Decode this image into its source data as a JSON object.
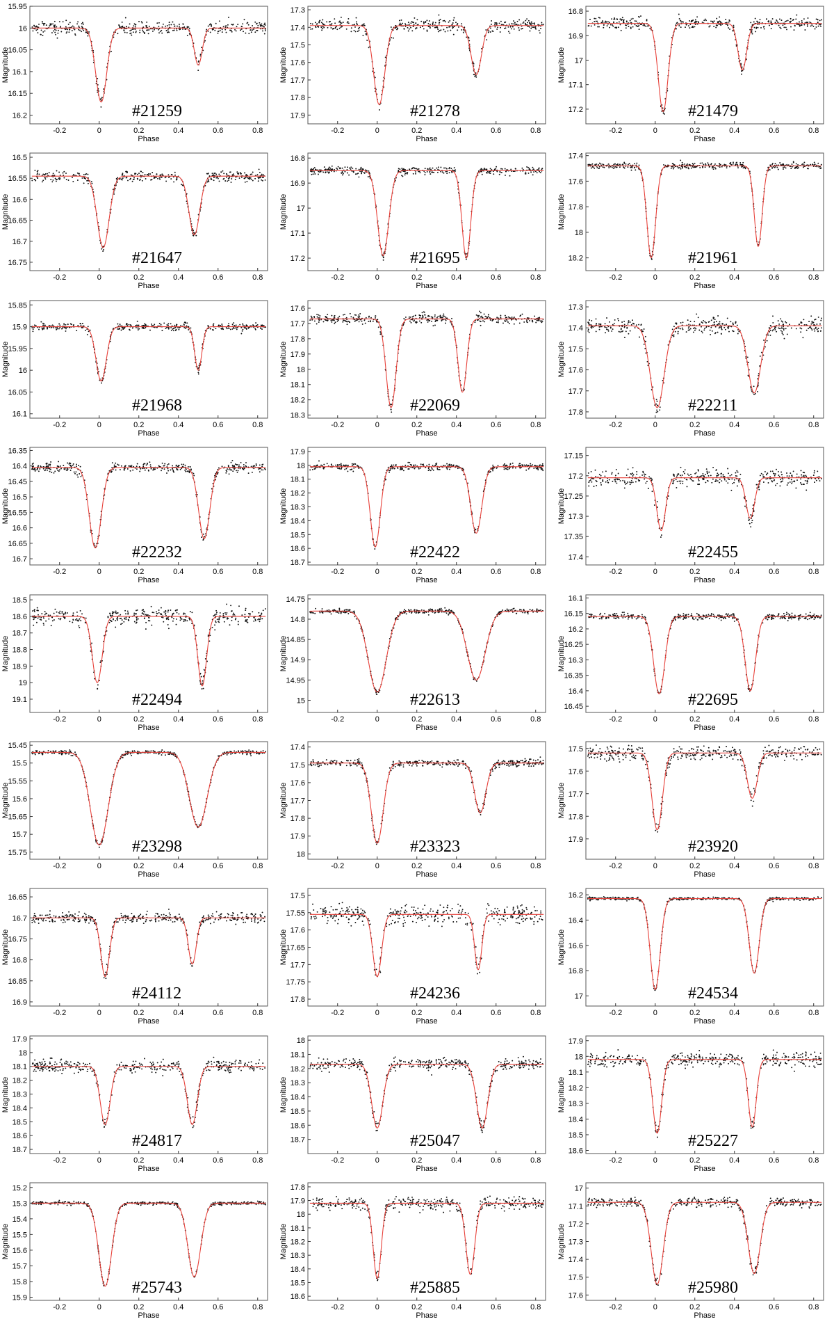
{
  "colors": {
    "model": "#e8413a",
    "points": "#111111",
    "frame": "#555555"
  },
  "chart_data": [
    {
      "type": "scatter",
      "label": "#21259",
      "xlabel": "Phase",
      "ylabel": "Magnitude",
      "xlim": [
        -0.35,
        0.85
      ],
      "xticks": [
        -0.2,
        0,
        0.2,
        0.4,
        0.6,
        0.8
      ],
      "ylim": [
        15.95,
        16.22
      ],
      "yticks": [
        15.95,
        16,
        16.05,
        16.1,
        16.15,
        16.2
      ],
      "y_inverted": true,
      "baseline": 16.0,
      "primary": {
        "phase": 0.01,
        "depth": 0.17,
        "width": 0.028
      },
      "secondary": {
        "phase": 0.5,
        "depth": 0.085,
        "width": 0.02
      },
      "scatter": 0.007
    },
    {
      "type": "scatter",
      "label": "#21278",
      "xlabel": "Phase",
      "ylabel": "Magnitude",
      "xlim": [
        -0.35,
        0.85
      ],
      "xticks": [
        -0.2,
        0,
        0.2,
        0.4,
        0.6,
        0.8
      ],
      "ylim": [
        17.28,
        17.95
      ],
      "yticks": [
        17.3,
        17.4,
        17.5,
        17.6,
        17.7,
        17.8,
        17.9
      ],
      "y_inverted": true,
      "baseline": 17.39,
      "primary": {
        "phase": 0.01,
        "depth": 0.45,
        "width": 0.028
      },
      "secondary": {
        "phase": 0.5,
        "depth": 0.28,
        "width": 0.026
      },
      "scatter": 0.02
    },
    {
      "type": "scatter",
      "label": "#21479",
      "xlabel": "Phase",
      "ylabel": "Magnitude",
      "xlim": [
        -0.35,
        0.85
      ],
      "xticks": [
        -0.2,
        0,
        0.2,
        0.4,
        0.6,
        0.8
      ],
      "ylim": [
        16.78,
        17.26
      ],
      "yticks": [
        16.8,
        16.9,
        17,
        17.1,
        17.2
      ],
      "y_inverted": true,
      "baseline": 16.85,
      "primary": {
        "phase": 0.04,
        "depth": 0.36,
        "width": 0.025
      },
      "secondary": {
        "phase": 0.44,
        "depth": 0.19,
        "width": 0.022
      },
      "scatter": 0.012
    },
    {
      "type": "scatter",
      "label": "#21647",
      "xlabel": "Phase",
      "ylabel": "Magnitude",
      "xlim": [
        -0.35,
        0.85
      ],
      "xticks": [
        -0.2,
        0,
        0.2,
        0.4,
        0.6,
        0.8
      ],
      "ylim": [
        16.49,
        16.77
      ],
      "yticks": [
        16.5,
        16.55,
        16.6,
        16.65,
        16.7,
        16.75
      ],
      "y_inverted": true,
      "baseline": 16.545,
      "primary": {
        "phase": 0.02,
        "depth": 0.17,
        "width": 0.03
      },
      "secondary": {
        "phase": 0.48,
        "depth": 0.14,
        "width": 0.027
      },
      "scatter": 0.006
    },
    {
      "type": "scatter",
      "label": "#21695",
      "xlabel": "Phase",
      "ylabel": "Magnitude",
      "xlim": [
        -0.35,
        0.85
      ],
      "xticks": [
        -0.2,
        0,
        0.2,
        0.4,
        0.6,
        0.8
      ],
      "ylim": [
        16.78,
        17.25
      ],
      "yticks": [
        16.8,
        16.9,
        17,
        17.1,
        17.2
      ],
      "y_inverted": true,
      "baseline": 16.85,
      "primary": {
        "phase": 0.03,
        "depth": 0.34,
        "width": 0.028
      },
      "secondary": {
        "phase": 0.45,
        "depth": 0.35,
        "width": 0.022
      },
      "scatter": 0.008
    },
    {
      "type": "scatter",
      "label": "#21961",
      "xlabel": "Phase",
      "ylabel": "Magnitude",
      "xlim": [
        -0.35,
        0.85
      ],
      "xticks": [
        -0.2,
        0,
        0.2,
        0.4,
        0.6,
        0.8
      ],
      "ylim": [
        17.38,
        18.3
      ],
      "yticks": [
        17.4,
        17.6,
        17.8,
        18,
        18.2
      ],
      "y_inverted": true,
      "baseline": 17.48,
      "primary": {
        "phase": -0.02,
        "depth": 0.72,
        "width": 0.022
      },
      "secondary": {
        "phase": 0.52,
        "depth": 0.63,
        "width": 0.02
      },
      "scatter": 0.012
    },
    {
      "type": "scatter",
      "label": "#21968",
      "xlabel": "Phase",
      "ylabel": "Magnitude",
      "xlim": [
        -0.35,
        0.85
      ],
      "xticks": [
        -0.2,
        0,
        0.2,
        0.4,
        0.6,
        0.8
      ],
      "ylim": [
        15.84,
        16.11
      ],
      "yticks": [
        15.85,
        15.9,
        15.95,
        16,
        16.05,
        16.1
      ],
      "y_inverted": true,
      "baseline": 15.9,
      "primary": {
        "phase": 0.01,
        "depth": 0.125,
        "width": 0.026
      },
      "secondary": {
        "phase": 0.5,
        "depth": 0.1,
        "width": 0.018
      },
      "scatter": 0.004
    },
    {
      "type": "scatter",
      "label": "#22069",
      "xlabel": "Phase",
      "ylabel": "Magnitude",
      "xlim": [
        -0.35,
        0.85
      ],
      "xticks": [
        -0.2,
        0,
        0.2,
        0.4,
        0.6,
        0.8
      ],
      "ylim": [
        17.55,
        18.32
      ],
      "yticks": [
        17.6,
        17.7,
        17.8,
        17.9,
        18,
        18.1,
        18.2,
        18.3
      ],
      "y_inverted": true,
      "baseline": 17.67,
      "primary": {
        "phase": 0.07,
        "depth": 0.58,
        "width": 0.025
      },
      "secondary": {
        "phase": 0.43,
        "depth": 0.48,
        "width": 0.022
      },
      "scatter": 0.015
    },
    {
      "type": "scatter",
      "label": "#22211",
      "xlabel": "Phase",
      "ylabel": "Magnitude",
      "xlim": [
        -0.35,
        0.85
      ],
      "xticks": [
        -0.2,
        0,
        0.2,
        0.4,
        0.6,
        0.8
      ],
      "ylim": [
        17.27,
        17.83
      ],
      "yticks": [
        17.3,
        17.4,
        17.5,
        17.6,
        17.7,
        17.8
      ],
      "y_inverted": true,
      "baseline": 17.39,
      "primary": {
        "phase": 0.01,
        "depth": 0.39,
        "width": 0.035
      },
      "secondary": {
        "phase": 0.5,
        "depth": 0.32,
        "width": 0.032
      },
      "scatter": 0.02
    },
    {
      "type": "scatter",
      "label": "#22232",
      "xlabel": "Phase",
      "ylabel": "Magnitude",
      "xlim": [
        -0.35,
        0.85
      ],
      "xticks": [
        -0.2,
        0,
        0.2,
        0.4,
        0.6,
        0.8
      ],
      "ylim": [
        16.34,
        16.72
      ],
      "yticks": [
        16.35,
        16.4,
        16.45,
        16.5,
        16.55,
        16.6,
        16.65,
        16.7
      ],
      "y_inverted": true,
      "baseline": 16.405,
      "primary": {
        "phase": -0.02,
        "depth": 0.26,
        "width": 0.03
      },
      "secondary": {
        "phase": 0.53,
        "depth": 0.23,
        "width": 0.028
      },
      "scatter": 0.008
    },
    {
      "type": "scatter",
      "label": "#22422",
      "xlabel": "Phase",
      "ylabel": "Magnitude",
      "xlim": [
        -0.35,
        0.85
      ],
      "xticks": [
        -0.2,
        0,
        0.2,
        0.4,
        0.6,
        0.8
      ],
      "ylim": [
        17.87,
        18.72
      ],
      "yticks": [
        17.9,
        18,
        18.1,
        18.2,
        18.3,
        18.4,
        18.5,
        18.6,
        18.7
      ],
      "y_inverted": true,
      "baseline": 18.01,
      "primary": {
        "phase": -0.01,
        "depth": 0.58,
        "width": 0.025
      },
      "secondary": {
        "phase": 0.5,
        "depth": 0.48,
        "width": 0.028
      },
      "scatter": 0.012
    },
    {
      "type": "scatter",
      "label": "#22455",
      "xlabel": "Phase",
      "ylabel": "Magnitude",
      "xlim": [
        -0.35,
        0.85
      ],
      "xticks": [
        -0.2,
        0,
        0.2,
        0.4,
        0.6,
        0.8
      ],
      "ylim": [
        17.13,
        17.42
      ],
      "yticks": [
        17.15,
        17.2,
        17.25,
        17.3,
        17.35,
        17.4
      ],
      "y_inverted": true,
      "baseline": 17.205,
      "primary": {
        "phase": 0.03,
        "depth": 0.13,
        "width": 0.022
      },
      "secondary": {
        "phase": 0.48,
        "depth": 0.1,
        "width": 0.022
      },
      "scatter": 0.011
    },
    {
      "type": "scatter",
      "label": "#22494",
      "xlabel": "Phase",
      "ylabel": "Magnitude",
      "xlim": [
        -0.35,
        0.85
      ],
      "xticks": [
        -0.2,
        0,
        0.2,
        0.4,
        0.6,
        0.8
      ],
      "ylim": [
        18.47,
        19.18
      ],
      "yticks": [
        18.5,
        18.6,
        18.7,
        18.8,
        18.9,
        19,
        19.1
      ],
      "y_inverted": true,
      "baseline": 18.6,
      "primary": {
        "phase": -0.01,
        "depth": 0.4,
        "width": 0.025
      },
      "secondary": {
        "phase": 0.52,
        "depth": 0.42,
        "width": 0.022
      },
      "scatter": 0.025
    },
    {
      "type": "scatter",
      "label": "#22613",
      "xlabel": "Phase",
      "ylabel": "Magnitude",
      "xlim": [
        -0.35,
        0.85
      ],
      "xticks": [
        -0.2,
        0,
        0.2,
        0.4,
        0.6,
        0.8
      ],
      "ylim": [
        14.74,
        15.03
      ],
      "yticks": [
        14.75,
        14.8,
        14.85,
        14.9,
        14.95,
        15
      ],
      "y_inverted": true,
      "baseline": 14.78,
      "primary": {
        "phase": 0.0,
        "depth": 0.2,
        "width": 0.045
      },
      "secondary": {
        "phase": 0.5,
        "depth": 0.17,
        "width": 0.045
      },
      "scatter": 0.003
    },
    {
      "type": "scatter",
      "label": "#22695",
      "xlabel": "Phase",
      "ylabel": "Magnitude",
      "xlim": [
        -0.35,
        0.85
      ],
      "xticks": [
        -0.2,
        0,
        0.2,
        0.4,
        0.6,
        0.8
      ],
      "ylim": [
        16.09,
        16.47
      ],
      "yticks": [
        16.1,
        16.15,
        16.2,
        16.25,
        16.3,
        16.35,
        16.4,
        16.45
      ],
      "y_inverted": true,
      "baseline": 16.16,
      "primary": {
        "phase": 0.02,
        "depth": 0.25,
        "width": 0.028
      },
      "secondary": {
        "phase": 0.48,
        "depth": 0.24,
        "width": 0.026
      },
      "scatter": 0.005
    },
    {
      "type": "scatter",
      "label": "#23298",
      "xlabel": "Phase",
      "ylabel": "Magnitude",
      "xlim": [
        -0.35,
        0.85
      ],
      "xticks": [
        -0.2,
        0,
        0.2,
        0.4,
        0.6,
        0.8
      ],
      "ylim": [
        15.44,
        15.77
      ],
      "yticks": [
        15.45,
        15.5,
        15.55,
        15.6,
        15.65,
        15.7,
        15.75
      ],
      "y_inverted": true,
      "baseline": 15.47,
      "primary": {
        "phase": 0.0,
        "depth": 0.26,
        "width": 0.045
      },
      "secondary": {
        "phase": 0.5,
        "depth": 0.21,
        "width": 0.045
      },
      "scatter": 0.003
    },
    {
      "type": "scatter",
      "label": "#23323",
      "xlabel": "Phase",
      "ylabel": "Magnitude",
      "xlim": [
        -0.35,
        0.85
      ],
      "xticks": [
        -0.2,
        0,
        0.2,
        0.4,
        0.6,
        0.8
      ],
      "ylim": [
        17.37,
        18.03
      ],
      "yticks": [
        17.4,
        17.5,
        17.6,
        17.7,
        17.8,
        17.9,
        18
      ],
      "y_inverted": true,
      "baseline": 17.49,
      "primary": {
        "phase": 0.0,
        "depth": 0.45,
        "width": 0.03
      },
      "secondary": {
        "phase": 0.52,
        "depth": 0.28,
        "width": 0.028
      },
      "scatter": 0.01
    },
    {
      "type": "scatter",
      "label": "#23920",
      "xlabel": "Phase",
      "ylabel": "Magnitude",
      "xlim": [
        -0.35,
        0.85
      ],
      "xticks": [
        -0.2,
        0,
        0.2,
        0.4,
        0.6,
        0.8
      ],
      "ylim": [
        17.47,
        17.99
      ],
      "yticks": [
        17.5,
        17.6,
        17.7,
        17.8,
        17.9
      ],
      "y_inverted": true,
      "baseline": 17.52,
      "primary": {
        "phase": 0.01,
        "depth": 0.34,
        "width": 0.026
      },
      "secondary": {
        "phase": 0.49,
        "depth": 0.2,
        "width": 0.025
      },
      "scatter": 0.015
    },
    {
      "type": "scatter",
      "label": "#24112",
      "xlabel": "Phase",
      "ylabel": "Magnitude",
      "xlim": [
        -0.35,
        0.85
      ],
      "xticks": [
        -0.2,
        0,
        0.2,
        0.4,
        0.6,
        0.8
      ],
      "ylim": [
        16.63,
        16.91
      ],
      "yticks": [
        16.65,
        16.7,
        16.75,
        16.8,
        16.85,
        16.9
      ],
      "y_inverted": true,
      "baseline": 16.7,
      "primary": {
        "phase": 0.03,
        "depth": 0.14,
        "width": 0.022
      },
      "secondary": {
        "phase": 0.47,
        "depth": 0.11,
        "width": 0.02
      },
      "scatter": 0.006
    },
    {
      "type": "scatter",
      "label": "#24236",
      "xlabel": "Phase",
      "ylabel": "Magnitude",
      "xlim": [
        -0.35,
        0.85
      ],
      "xticks": [
        -0.2,
        0,
        0.2,
        0.4,
        0.6,
        0.8
      ],
      "ylim": [
        17.48,
        17.82
      ],
      "yticks": [
        17.5,
        17.55,
        17.6,
        17.65,
        17.7,
        17.75,
        17.8
      ],
      "y_inverted": true,
      "baseline": 17.555,
      "primary": {
        "phase": 0.0,
        "depth": 0.18,
        "width": 0.022
      },
      "secondary": {
        "phase": 0.51,
        "depth": 0.16,
        "width": 0.018
      },
      "scatter": 0.014
    },
    {
      "type": "scatter",
      "label": "#24534",
      "xlabel": "Phase",
      "ylabel": "Magnitude",
      "xlim": [
        -0.35,
        0.85
      ],
      "xticks": [
        -0.2,
        0,
        0.2,
        0.4,
        0.6,
        0.8
      ],
      "ylim": [
        16.15,
        17.08
      ],
      "yticks": [
        16.2,
        16.4,
        16.6,
        16.8,
        17
      ],
      "y_inverted": true,
      "baseline": 16.23,
      "primary": {
        "phase": 0.0,
        "depth": 0.72,
        "width": 0.025
      },
      "secondary": {
        "phase": 0.5,
        "depth": 0.59,
        "width": 0.025
      },
      "scatter": 0.006
    },
    {
      "type": "scatter",
      "label": "#24817",
      "xlabel": "Phase",
      "ylabel": "Magnitude",
      "xlim": [
        -0.35,
        0.85
      ],
      "xticks": [
        -0.2,
        0,
        0.2,
        0.4,
        0.6,
        0.8
      ],
      "ylim": [
        17.88,
        18.73
      ],
      "yticks": [
        17.9,
        18,
        18.1,
        18.2,
        18.3,
        18.4,
        18.5,
        18.6,
        18.7
      ],
      "y_inverted": true,
      "baseline": 18.1,
      "primary": {
        "phase": 0.03,
        "depth": 0.42,
        "width": 0.025
      },
      "secondary": {
        "phase": 0.47,
        "depth": 0.42,
        "width": 0.025
      },
      "scatter": 0.022
    },
    {
      "type": "scatter",
      "label": "#25047",
      "xlabel": "Phase",
      "ylabel": "Magnitude",
      "xlim": [
        -0.35,
        0.85
      ],
      "xticks": [
        -0.2,
        0,
        0.2,
        0.4,
        0.6,
        0.8
      ],
      "ylim": [
        17.97,
        18.8
      ],
      "yticks": [
        18,
        18.1,
        18.2,
        18.3,
        18.4,
        18.5,
        18.6,
        18.7
      ],
      "y_inverted": true,
      "baseline": 18.17,
      "primary": {
        "phase": 0.0,
        "depth": 0.45,
        "width": 0.028
      },
      "secondary": {
        "phase": 0.53,
        "depth": 0.45,
        "width": 0.028
      },
      "scatter": 0.02
    },
    {
      "type": "scatter",
      "label": "#25227",
      "xlabel": "Phase",
      "ylabel": "Magnitude",
      "xlim": [
        -0.35,
        0.85
      ],
      "xticks": [
        -0.2,
        0,
        0.2,
        0.4,
        0.6,
        0.8
      ],
      "ylim": [
        17.87,
        18.62
      ],
      "yticks": [
        17.9,
        18,
        18.1,
        18.2,
        18.3,
        18.4,
        18.5,
        18.6
      ],
      "y_inverted": true,
      "baseline": 18.02,
      "primary": {
        "phase": 0.01,
        "depth": 0.47,
        "width": 0.022
      },
      "secondary": {
        "phase": 0.49,
        "depth": 0.43,
        "width": 0.02
      },
      "scatter": 0.022
    },
    {
      "type": "scatter",
      "label": "#25743",
      "xlabel": "Phase",
      "ylabel": "Magnitude",
      "xlim": [
        -0.35,
        0.85
      ],
      "xticks": [
        -0.2,
        0,
        0.2,
        0.4,
        0.6,
        0.8
      ],
      "ylim": [
        15.17,
        15.92
      ],
      "yticks": [
        15.2,
        15.3,
        15.4,
        15.5,
        15.6,
        15.7,
        15.8,
        15.9
      ],
      "y_inverted": true,
      "baseline": 15.3,
      "primary": {
        "phase": 0.03,
        "depth": 0.53,
        "width": 0.032
      },
      "secondary": {
        "phase": 0.48,
        "depth": 0.47,
        "width": 0.032
      },
      "scatter": 0.005
    },
    {
      "type": "scatter",
      "label": "#25885",
      "xlabel": "Phase",
      "ylabel": "Magnitude",
      "xlim": [
        -0.35,
        0.85
      ],
      "xticks": [
        -0.2,
        0,
        0.2,
        0.4,
        0.6,
        0.8
      ],
      "ylim": [
        17.77,
        18.63
      ],
      "yticks": [
        17.8,
        17.9,
        18,
        18.1,
        18.2,
        18.3,
        18.4,
        18.5,
        18.6
      ],
      "y_inverted": true,
      "baseline": 17.92,
      "primary": {
        "phase": 0.0,
        "depth": 0.55,
        "width": 0.02
      },
      "secondary": {
        "phase": 0.47,
        "depth": 0.52,
        "width": 0.022
      },
      "scatter": 0.022
    },
    {
      "type": "scatter",
      "label": "#25980",
      "xlabel": "Phase",
      "ylabel": "Magnitude",
      "xlim": [
        -0.35,
        0.85
      ],
      "xticks": [
        -0.2,
        0,
        0.2,
        0.4,
        0.6,
        0.8
      ],
      "ylim": [
        16.97,
        17.63
      ],
      "yticks": [
        17,
        17.1,
        17.2,
        17.3,
        17.4,
        17.5,
        17.6
      ],
      "y_inverted": true,
      "baseline": 17.08,
      "primary": {
        "phase": 0.01,
        "depth": 0.46,
        "width": 0.03
      },
      "secondary": {
        "phase": 0.5,
        "depth": 0.4,
        "width": 0.03
      },
      "scatter": 0.012
    }
  ]
}
